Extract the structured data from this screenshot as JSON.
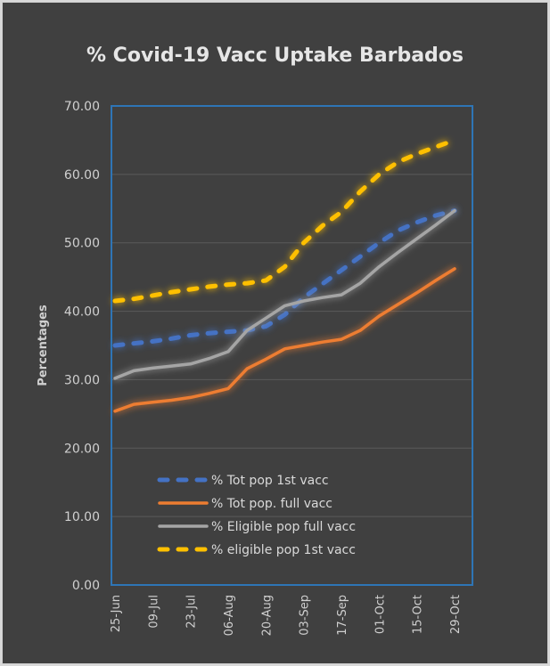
{
  "chart_data": {
    "type": "line",
    "title": "% Covid-19 Vacc Uptake Barbados",
    "xlabel": "",
    "ylabel": "Percentages",
    "ylim": [
      0,
      70
    ],
    "yticks": [
      "0.00",
      "10.00",
      "20.00",
      "30.00",
      "40.00",
      "50.00",
      "60.00",
      "70.00"
    ],
    "x_tick_labels": [
      "25-Jun",
      "09-Jul",
      "23-Jul",
      "06-Aug",
      "20-Aug",
      "03-Sep",
      "17-Sep",
      "01-Oct",
      "15-Oct",
      "29-Oct"
    ],
    "x": [
      "25-Jun",
      "02-Jul",
      "09-Jul",
      "16-Jul",
      "23-Jul",
      "30-Jul",
      "06-Aug",
      "13-Aug",
      "20-Aug",
      "27-Aug",
      "03-Sep",
      "10-Sep",
      "17-Sep",
      "24-Sep",
      "01-Oct",
      "08-Oct",
      "15-Oct",
      "22-Oct",
      "29-Oct"
    ],
    "grid": true,
    "legend_position": "bottom-left-inside",
    "series": [
      {
        "name": "% Tot pop 1st vacc",
        "color": "#4472c4",
        "dash": true,
        "values": [
          35.0,
          35.3,
          35.6,
          36.0,
          36.5,
          36.8,
          37.0,
          37.2,
          37.8,
          39.5,
          42.0,
          44.0,
          46.0,
          48.0,
          50.0,
          51.8,
          53.0,
          54.0,
          54.7
        ]
      },
      {
        "name": "% Tot pop. full vacc",
        "color": "#ed7d31",
        "dash": false,
        "values": [
          25.4,
          26.4,
          26.7,
          27.0,
          27.4,
          28.0,
          28.7,
          31.6,
          33.0,
          34.5,
          35.0,
          35.5,
          35.9,
          37.2,
          39.3,
          41.0,
          42.7,
          44.5,
          46.2
        ]
      },
      {
        "name": "% Eligible pop full vacc",
        "color": "#a5a5a5",
        "dash": false,
        "values": [
          30.2,
          31.3,
          31.7,
          32.0,
          32.3,
          33.1,
          34.1,
          37.2,
          39.0,
          40.8,
          41.5,
          42.0,
          42.4,
          44.1,
          46.5,
          48.6,
          50.6,
          52.6,
          54.7
        ]
      },
      {
        "name": "% eligible pop 1st vacc",
        "color": "#ffc000",
        "dash": true,
        "values": [
          41.5,
          41.8,
          42.3,
          42.8,
          43.2,
          43.6,
          43.9,
          44.1,
          44.5,
          46.5,
          50.0,
          52.5,
          54.5,
          57.5,
          60.0,
          61.8,
          63.0,
          64.0,
          65.0
        ]
      }
    ]
  }
}
